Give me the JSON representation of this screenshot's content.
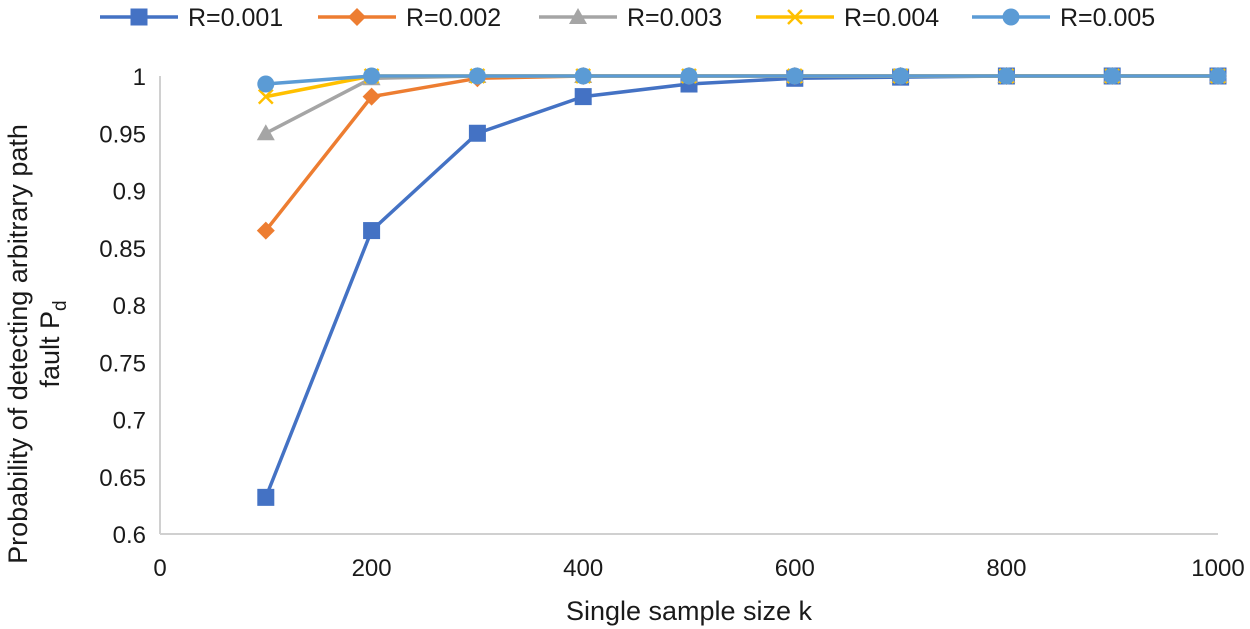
{
  "chart_data": {
    "type": "line",
    "xlabel": "Single sample size k",
    "ylabel_line1": "Probability of detecting arbitrary path",
    "ylabel_line2": "fault P",
    "ylabel_subscript": "d",
    "xlim": [
      0,
      1000
    ],
    "ylim": [
      0.6,
      1.0
    ],
    "x_ticks": [
      0,
      200,
      400,
      600,
      800,
      1000
    ],
    "y_ticks": [
      0.6,
      0.65,
      0.7,
      0.75,
      0.8,
      0.85,
      0.9,
      0.95,
      1.0
    ],
    "y_tick_labels": [
      "0.6",
      "0.65",
      "0.7",
      "0.75",
      "0.8",
      "0.85",
      "0.9",
      "0.95",
      "1"
    ],
    "x_tick_labels": [
      "0",
      "200",
      "400",
      "600",
      "800",
      "1000"
    ],
    "grid": false,
    "legend_position": "top",
    "x": [
      100,
      200,
      300,
      400,
      500,
      600,
      700,
      800,
      900,
      1000
    ],
    "series": [
      {
        "name": "R=0.001",
        "color": "#4472C4",
        "marker": "square",
        "values": [
          0.632,
          0.865,
          0.95,
          0.982,
          0.993,
          0.998,
          0.999,
          1.0,
          1.0,
          1.0
        ]
      },
      {
        "name": "R=0.002",
        "color": "#ED7D31",
        "marker": "diamond",
        "values": [
          0.865,
          0.982,
          0.998,
          1.0,
          1.0,
          1.0,
          1.0,
          1.0,
          1.0,
          1.0
        ]
      },
      {
        "name": "R=0.003",
        "color": "#A5A5A5",
        "marker": "triangle",
        "values": [
          0.95,
          0.998,
          1.0,
          1.0,
          1.0,
          1.0,
          1.0,
          1.0,
          1.0,
          1.0
        ]
      },
      {
        "name": "R=0.004",
        "color": "#FFC000",
        "marker": "x",
        "values": [
          0.982,
          1.0,
          1.0,
          1.0,
          1.0,
          1.0,
          1.0,
          1.0,
          1.0,
          1.0
        ]
      },
      {
        "name": "R=0.005",
        "color": "#5B9BD5",
        "marker": "circle",
        "values": [
          0.993,
          1.0,
          1.0,
          1.0,
          1.0,
          1.0,
          1.0,
          1.0,
          1.0,
          1.0
        ]
      }
    ]
  }
}
